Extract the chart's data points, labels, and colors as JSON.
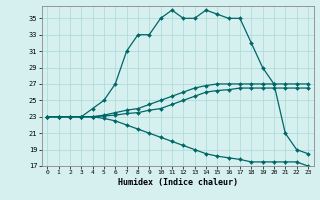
{
  "title": "",
  "xlabel": "Humidex (Indice chaleur)",
  "bg_color": "#d6f0f0",
  "grid_color": "#aad8d8",
  "line_color": "#006666",
  "xlim": [
    -0.5,
    23.5
  ],
  "ylim": [
    17,
    36.5
  ],
  "yticks": [
    17,
    19,
    21,
    23,
    25,
    27,
    29,
    31,
    33,
    35
  ],
  "xticks": [
    0,
    1,
    2,
    3,
    4,
    5,
    6,
    7,
    8,
    9,
    10,
    11,
    12,
    13,
    14,
    15,
    16,
    17,
    18,
    19,
    20,
    21,
    22,
    23
  ],
  "series1": [
    23,
    23,
    23,
    23,
    24,
    25,
    27,
    31,
    33,
    33,
    35,
    36,
    35,
    35,
    36,
    35.5,
    35,
    35,
    32,
    29,
    27,
    21,
    19,
    18.5
  ],
  "series2": [
    23,
    23,
    23,
    23,
    23,
    23.2,
    23.5,
    23.8,
    24,
    24.5,
    25,
    25.5,
    26,
    26.5,
    26.8,
    27,
    27,
    27,
    27,
    27,
    27,
    27,
    27,
    27
  ],
  "series3": [
    23,
    23,
    23,
    23,
    23,
    23.1,
    23.2,
    23.4,
    23.5,
    23.8,
    24,
    24.5,
    25,
    25.5,
    26,
    26.2,
    26.3,
    26.5,
    26.5,
    26.5,
    26.5,
    26.5,
    26.5,
    26.5
  ],
  "series4": [
    23,
    23,
    23,
    23,
    23,
    22.8,
    22.5,
    22,
    21.5,
    21,
    20.5,
    20,
    19.5,
    19,
    18.5,
    18.2,
    18,
    17.8,
    17.5,
    17.5,
    17.5,
    17.5,
    17.5,
    17
  ]
}
